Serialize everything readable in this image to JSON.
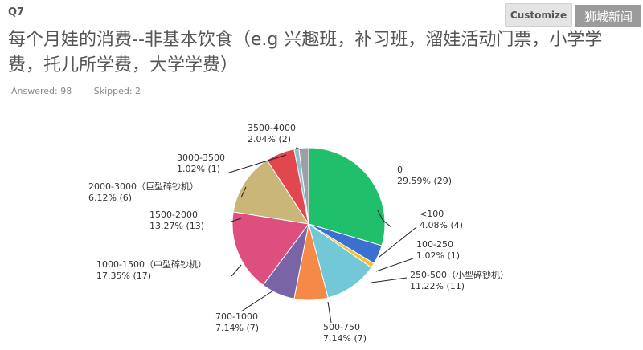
{
  "header": {
    "question_number": "Q7",
    "customize_label": "Customize",
    "watermark": "狮城新闻"
  },
  "question": {
    "title": "每个月娃的消费--非基本饮食（e.g 兴趣班，补习班，溜娃活动门票，小学学费，托儿所学费，大学学费）",
    "answered": "Answered: 98",
    "skipped": "Skipped: 2"
  },
  "chart_data": {
    "type": "pie",
    "title": "",
    "slices": [
      {
        "label": "0",
        "percent": 29.59,
        "count": 29,
        "percent_text": "29.59% (29)",
        "color": "#1fbf6b"
      },
      {
        "label": "<100",
        "percent": 4.08,
        "count": 4,
        "percent_text": "4.08% (4)",
        "color": "#3b6fd0"
      },
      {
        "label": "100-250",
        "percent": 1.02,
        "count": 1,
        "percent_text": "1.02% (1)",
        "color": "#f2c230"
      },
      {
        "label": "250-500（小型碎钞机）",
        "percent": 11.22,
        "count": 11,
        "percent_text": "11.22% (11)",
        "color": "#72c8d6"
      },
      {
        "label": "500-750",
        "percent": 7.14,
        "count": 7,
        "percent_text": "7.14% (7)",
        "color": "#f68848"
      },
      {
        "label": "700-1000",
        "percent": 7.14,
        "count": 7,
        "percent_text": "7.14% (7)",
        "color": "#7a64a8"
      },
      {
        "label": "1000-1500（中型碎钞机）",
        "percent": 17.35,
        "count": 17,
        "percent_text": "17.35% (17)",
        "color": "#dd4f7e"
      },
      {
        "label": "1500-2000",
        "percent": 13.27,
        "count": 13,
        "percent_text": "13.27% (13)",
        "color": "#cbb67a"
      },
      {
        "label": "2000-3000（巨型碎钞机）",
        "percent": 6.12,
        "count": 6,
        "percent_text": "6.12% (6)",
        "color": "#e0474f"
      },
      {
        "label": "3000-3500",
        "percent": 1.02,
        "count": 1,
        "percent_text": "1.02% (1)",
        "color": "#8fbfc8"
      },
      {
        "label": "3500-4000",
        "percent": 2.04,
        "count": 2,
        "percent_text": "2.04% (2)",
        "color": "#9aa0a6"
      }
    ]
  }
}
